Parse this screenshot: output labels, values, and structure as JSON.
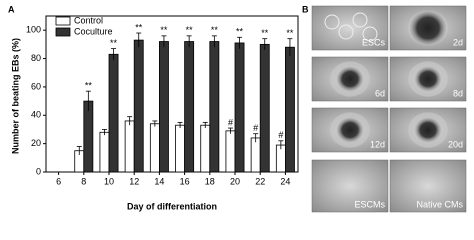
{
  "panel_labels": [
    "A",
    "B"
  ],
  "chart_data": {
    "type": "bar",
    "xlabel": "Day of differentiation",
    "ylabel": "Number of beating EBs (%)",
    "categories": [
      6,
      8,
      10,
      12,
      14,
      16,
      18,
      20,
      22,
      24
    ],
    "series": [
      {
        "name": "Control",
        "color": "#ffffff",
        "values": [
          0,
          15,
          28,
          36,
          34,
          33,
          33,
          29,
          24,
          19
        ],
        "errors": [
          0,
          3,
          2,
          3,
          2,
          2,
          2,
          2,
          3,
          3
        ],
        "annotations": [
          null,
          null,
          null,
          null,
          null,
          null,
          null,
          "#",
          "#",
          "#"
        ]
      },
      {
        "name": "Coculture",
        "color": "#333333",
        "values": [
          0,
          50,
          83,
          93,
          92,
          92,
          92,
          91,
          90,
          88
        ],
        "errors": [
          0,
          7,
          4,
          5,
          4,
          4,
          4,
          4,
          4,
          6
        ],
        "annotations": [
          null,
          "**",
          "**",
          "**",
          "**",
          "**",
          "**",
          "**",
          "**",
          "**"
        ]
      }
    ],
    "ylim": [
      0,
      110
    ],
    "yticks": [
      0,
      20,
      40,
      60,
      80,
      100
    ],
    "legend": "upper left"
  },
  "images": [
    "ESCs",
    "2d",
    "6d",
    "8d",
    "12d",
    "20d",
    "ESCMs",
    "Native CMs"
  ]
}
